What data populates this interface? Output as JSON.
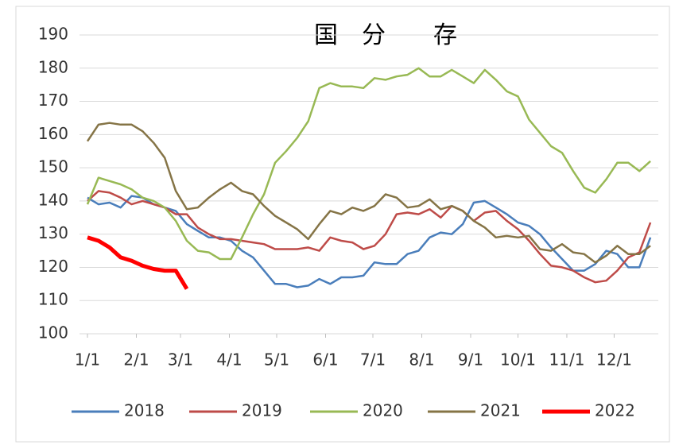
{
  "chart_data": {
    "type": "line",
    "title": "国　分　　存",
    "x": [
      0,
      7,
      14,
      21,
      28,
      35,
      42,
      49,
      56,
      63,
      70,
      77,
      84,
      91,
      98,
      105,
      112,
      119,
      126,
      133,
      140,
      147,
      154,
      161,
      168,
      175,
      182,
      189,
      196,
      203,
      210,
      217,
      224,
      231,
      238,
      245,
      252,
      259,
      266,
      273,
      280,
      287,
      294,
      301,
      308,
      315,
      322,
      329,
      336,
      343,
      350,
      357
    ],
    "xlim": [
      0,
      362
    ],
    "xticks": [
      {
        "value": 0,
        "label": "1/1"
      },
      {
        "value": 31,
        "label": "2/1"
      },
      {
        "value": 59,
        "label": "3/1"
      },
      {
        "value": 90,
        "label": "4/1"
      },
      {
        "value": 120,
        "label": "5/1"
      },
      {
        "value": 151,
        "label": "6/1"
      },
      {
        "value": 181,
        "label": "7/1"
      },
      {
        "value": 212,
        "label": "8/1"
      },
      {
        "value": 243,
        "label": "9/1"
      },
      {
        "value": 273,
        "label": "10/1"
      },
      {
        "value": 304,
        "label": "11/1"
      },
      {
        "value": 334,
        "label": "12/1"
      }
    ],
    "ylim": [
      100,
      190
    ],
    "yticks": [
      100,
      110,
      120,
      130,
      140,
      150,
      160,
      170,
      180,
      190
    ],
    "grid": true,
    "legend": "bottom",
    "series": [
      {
        "name": "2018",
        "color": "#4a7ebb",
        "values": [
          141,
          139,
          139.5,
          138,
          141.5,
          141,
          139,
          138,
          137,
          133,
          131,
          129,
          129,
          128,
          125,
          123,
          119,
          115,
          115,
          114,
          114.5,
          116.5,
          115,
          117,
          117,
          117.5,
          121.5,
          121,
          121,
          124,
          125,
          129,
          130.5,
          130,
          133,
          139.5,
          140,
          138,
          136,
          133.5,
          132.5,
          130,
          126,
          122.5,
          119,
          119,
          121,
          125,
          124,
          120,
          120,
          129
        ]
      },
      {
        "name": "2019",
        "color": "#be4b48",
        "values": [
          140,
          143,
          142.5,
          141,
          139,
          140,
          139,
          138,
          136,
          136,
          132,
          130,
          128.5,
          128.5,
          128,
          127.5,
          127,
          125.5,
          125.5,
          125.5,
          126,
          125,
          129,
          128,
          127.5,
          125.5,
          126.5,
          130,
          136,
          136.5,
          136,
          137.5,
          135,
          138.5,
          137,
          134,
          136.5,
          137,
          134,
          131.5,
          128,
          124,
          120.5,
          120,
          119,
          117,
          115.5,
          116,
          119,
          123,
          124.5,
          133.5
        ]
      },
      {
        "name": "2020",
        "color": "#98b954",
        "values": [
          139,
          147,
          146,
          145,
          143.5,
          141,
          140,
          138,
          134,
          128,
          125,
          124.5,
          122.5,
          122.5,
          129,
          136,
          142,
          151.5,
          155,
          159,
          164,
          174,
          175.5,
          174.5,
          174.5,
          174,
          177,
          176.5,
          177.5,
          178,
          180,
          177.5,
          177.5,
          179.5,
          177.5,
          175.5,
          179.5,
          176.5,
          173,
          171.5,
          164.5,
          160.5,
          156.5,
          154.5,
          149,
          144,
          142.5,
          146.5,
          151.5,
          151.5,
          149,
          152
        ]
      },
      {
        "name": "2021",
        "color": "#857446",
        "values": [
          158,
          163,
          163.5,
          163,
          163,
          161,
          157.5,
          153,
          143,
          137.5,
          138,
          141,
          143.5,
          145.5,
          143,
          142,
          138.5,
          135.5,
          133.5,
          131.5,
          128.5,
          133,
          137,
          136,
          138,
          137,
          138.5,
          142,
          141,
          138,
          138.5,
          140.5,
          137.5,
          138.5,
          137,
          134,
          132,
          129,
          129.5,
          129,
          129.5,
          125.5,
          125,
          127,
          124.5,
          124,
          121.5,
          123.5,
          126.5,
          124,
          124,
          126.5
        ]
      },
      {
        "name": "2022",
        "color": "#ff0000",
        "values": [
          129,
          128,
          126,
          123,
          122,
          120.5,
          119.5,
          119,
          119,
          113.5,
          null,
          null,
          null,
          null,
          null,
          null,
          null,
          null,
          null,
          null,
          null,
          null,
          null,
          null,
          null,
          null,
          null,
          null,
          null,
          null,
          null,
          null,
          null,
          null,
          null,
          null,
          null,
          null,
          null,
          null,
          null,
          null,
          null,
          null,
          null,
          null,
          null,
          null,
          null,
          null,
          null,
          null
        ]
      }
    ]
  }
}
